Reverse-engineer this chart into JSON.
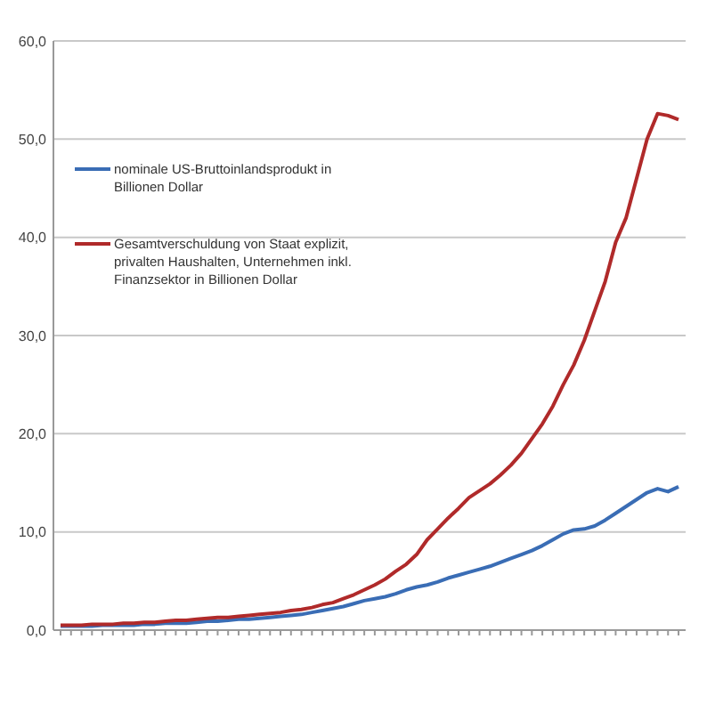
{
  "chart_data": {
    "type": "line",
    "categories": [
      null,
      null,
      null,
      null,
      null,
      null,
      null,
      null,
      null,
      null,
      null,
      null,
      null,
      null,
      null,
      null,
      null,
      null,
      null,
      null,
      null,
      null,
      null,
      null,
      null,
      null,
      null,
      null,
      null,
      null,
      null,
      null,
      null,
      null,
      null,
      null,
      null,
      null,
      null,
      null,
      null,
      null,
      null,
      null,
      null,
      null,
      null,
      null,
      null,
      null,
      null,
      null,
      null,
      null,
      null,
      null,
      null,
      null,
      null,
      null
    ],
    "series": [
      {
        "name": "nominale US-Bruttoinlandsprodukt  in  Billionen Dollar",
        "color": "#3a6db5",
        "values": [
          0.4,
          0.4,
          0.4,
          0.4,
          0.5,
          0.5,
          0.5,
          0.5,
          0.6,
          0.6,
          0.7,
          0.7,
          0.7,
          0.8,
          0.9,
          0.9,
          1.0,
          1.1,
          1.1,
          1.2,
          1.3,
          1.4,
          1.5,
          1.6,
          1.8,
          2.0,
          2.2,
          2.4,
          2.7,
          3.0,
          3.2,
          3.4,
          3.7,
          4.1,
          4.4,
          4.6,
          4.9,
          5.3,
          5.6,
          5.9,
          6.2,
          6.5,
          6.9,
          7.3,
          7.7,
          8.1,
          8.6,
          9.2,
          9.8,
          10.2,
          10.3,
          10.6,
          11.2,
          11.9,
          12.6,
          13.3,
          14.0,
          14.4,
          14.1,
          14.6
        ]
      },
      {
        "name": "Gesamtverschuldung von Staat  explizit, privalten Haushalten,  Unternehmen inkl. Finanzsektor  in  Billionen Dollar",
        "color": "#b02a2a",
        "values": [
          0.5,
          0.5,
          0.5,
          0.6,
          0.6,
          0.6,
          0.7,
          0.7,
          0.8,
          0.8,
          0.9,
          1.0,
          1.0,
          1.1,
          1.2,
          1.3,
          1.3,
          1.4,
          1.5,
          1.6,
          1.7,
          1.8,
          2.0,
          2.1,
          2.3,
          2.6,
          2.8,
          3.2,
          3.6,
          4.1,
          4.6,
          5.2,
          6.0,
          6.7,
          7.7,
          9.2,
          10.3,
          11.4,
          12.4,
          13.5,
          14.2,
          14.9,
          15.8,
          16.8,
          18.0,
          19.5,
          21.0,
          22.8,
          25.0,
          27.0,
          29.5,
          32.5,
          35.5,
          39.5,
          42.0,
          46.0,
          50.0,
          52.6,
          52.4,
          52.0
        ]
      }
    ],
    "ylim": [
      0,
      60
    ],
    "yticks": [
      {
        "value": 0,
        "label": "0,0"
      },
      {
        "value": 10,
        "label": "10,0"
      },
      {
        "value": 20,
        "label": "20,0"
      },
      {
        "value": 30,
        "label": "30,0"
      },
      {
        "value": 40,
        "label": "40,0"
      },
      {
        "value": 50,
        "label": "50,0"
      },
      {
        "value": 60,
        "label": "60,0"
      }
    ],
    "grid": "y",
    "legend": "left",
    "marker": "none",
    "line_style": "solid"
  }
}
